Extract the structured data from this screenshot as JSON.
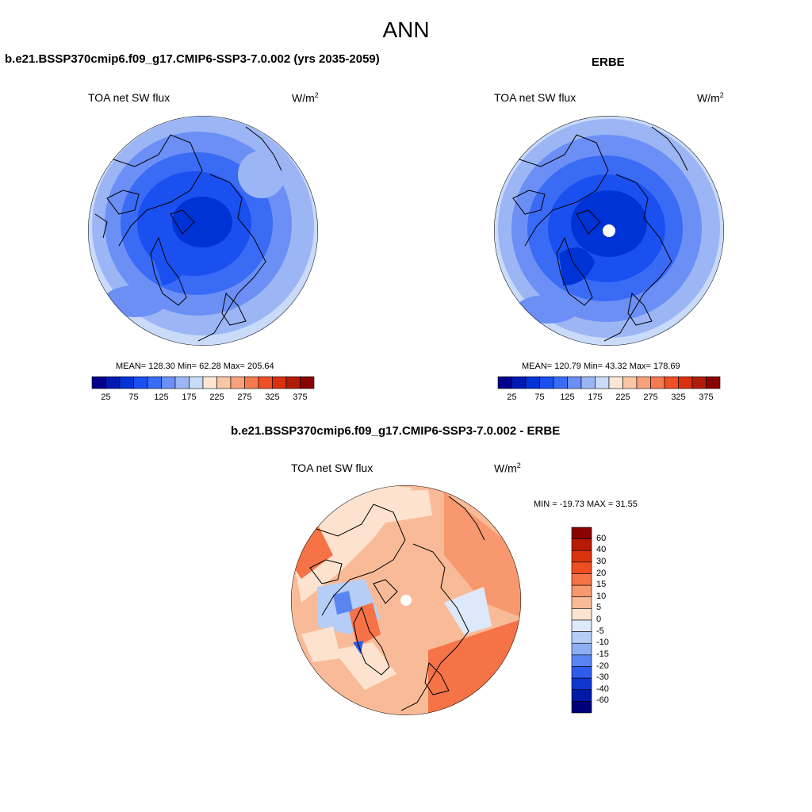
{
  "main_title": "ANN",
  "panels": [
    {
      "title": "b.e21.BSSP370cmip6.f09_g17.CMIP6-SSP3-7.0.002 (yrs 2035-2059)",
      "variable": "TOA net SW flux",
      "units_base": "W/m",
      "units_exp": "2",
      "stats": "MEAN= 128.30  Min=  62.28  Max= 205.64"
    },
    {
      "title": "ERBE",
      "variable": "TOA net SW flux",
      "units_base": "W/m",
      "units_exp": "2",
      "stats": "MEAN= 120.79  Min=  43.32  Max= 178.69"
    },
    {
      "title": "b.e21.BSSP370cmip6.f09_g17.CMIP6-SSP3-7.0.002 - ERBE",
      "variable": "TOA net SW flux",
      "units_base": "W/m",
      "units_exp": "2",
      "stats": "MIN = -19.73 MAX =  31.55"
    }
  ],
  "colorbar_abs": {
    "tick_labels": [
      "25",
      "75",
      "125",
      "175",
      "225",
      "275",
      "325",
      "375"
    ],
    "colors": [
      "#00008a",
      "#0019b3",
      "#0033d6",
      "#1a4ff0",
      "#3a6bf5",
      "#6b8ff5",
      "#9cb6f5",
      "#c9dbf9",
      "#fde6d3",
      "#f9c6a6",
      "#f7a27a",
      "#f57a4f",
      "#ef4f24",
      "#d93010",
      "#b11c08",
      "#8a0303"
    ]
  },
  "colorbar_diff": {
    "tick_labels": [
      "60",
      "40",
      "30",
      "20",
      "15",
      "10",
      "5",
      "0",
      "-5",
      "-10",
      "-15",
      "-20",
      "-30",
      "-40",
      "-60"
    ],
    "colors": [
      "#8a0303",
      "#b81a06",
      "#d9330c",
      "#ee4e22",
      "#f57347",
      "#f7986e",
      "#f9bb97",
      "#fde3cf",
      "#dde9fb",
      "#b5cdf7",
      "#8eaef4",
      "#5a85f1",
      "#2f5cea",
      "#0f36cf",
      "#0019a8",
      "#00007a"
    ]
  }
}
